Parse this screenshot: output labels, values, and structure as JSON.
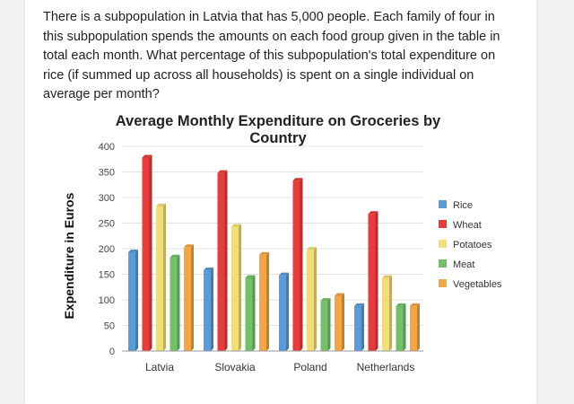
{
  "question": "There is a subpopulation in Latvia that has 5,000 people. Each family of four in this subpopulation spends the amounts on each food group given in the table in total each month. What percentage of this subpopulation's total expenditure on rice (if summed up across all households) is spent on a single individual on average per month?",
  "chart_data": {
    "type": "bar",
    "title": "Average Monthly Expenditure on Groceries by Country",
    "xlabel": "",
    "ylabel": "Expenditure in Euros",
    "categories": [
      "Latvia",
      "Slovakia",
      "Poland",
      "Netherlands"
    ],
    "ylim": [
      0,
      400
    ],
    "yticks": [
      0,
      50,
      100,
      150,
      200,
      250,
      300,
      350,
      400
    ],
    "grid": true,
    "legend": "right",
    "series": [
      {
        "name": "Rice",
        "color": "#5a9bd9",
        "values": [
          193,
          158,
          148,
          88
        ]
      },
      {
        "name": "Wheat",
        "color": "#e83b3b",
        "values": [
          378,
          348,
          333,
          268
        ]
      },
      {
        "name": "Potatoes",
        "color": "#f2de78",
        "values": [
          283,
          243,
          198,
          143
        ]
      },
      {
        "name": "Meat",
        "color": "#72c168",
        "values": [
          183,
          143,
          98,
          88
        ]
      },
      {
        "name": "Vegetables",
        "color": "#f4a642",
        "values": [
          203,
          188,
          108,
          88
        ]
      }
    ]
  }
}
